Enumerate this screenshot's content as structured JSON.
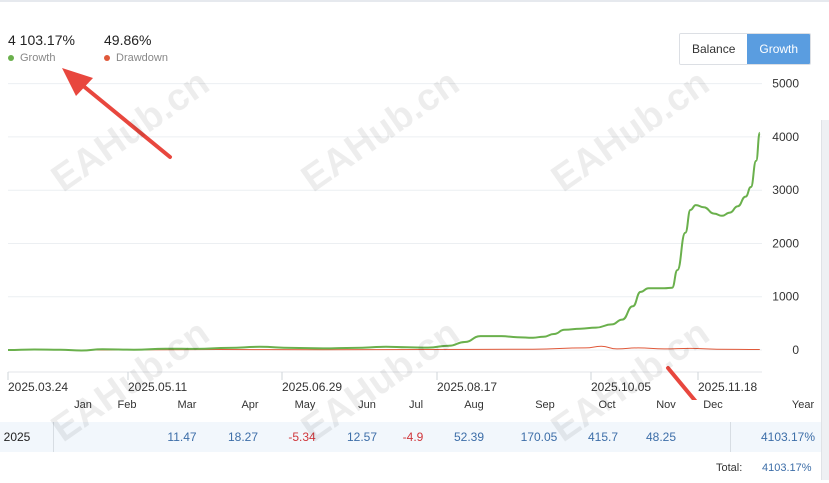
{
  "header": {
    "growth_value": "4 103.17%",
    "growth_label": "Growth",
    "drawdown_value": "49.86%",
    "drawdown_label": "Drawdown"
  },
  "toggle": {
    "balance_label": "Balance",
    "growth_label": "Growth",
    "active": "Growth"
  },
  "colors": {
    "growth": "#6ab04c",
    "drawdown": "#e0593a",
    "accent": "#5a9de0",
    "positive": "#3d6ea8",
    "negative": "#d0373c",
    "arrow": "#e8473e"
  },
  "watermark": "EAHub.cn",
  "chart_data": {
    "type": "line",
    "y_ticks": [
      "5000",
      "4000",
      "3000",
      "2000",
      "1000",
      "0"
    ],
    "x_tick_labels": [
      "2025.03.24",
      "2025.05.11",
      "2025.06.29",
      "2025.08.17",
      "2025.10.05",
      "2025.11.18"
    ],
    "ylim": [
      -400,
      5000
    ],
    "grid": true,
    "series": [
      {
        "name": "Growth",
        "color": "#6ab04c",
        "points": [
          [
            0,
            0
          ],
          [
            0.05,
            10
          ],
          [
            0.1,
            5
          ],
          [
            0.14,
            -10
          ],
          [
            0.18,
            15
          ],
          [
            0.24,
            5
          ],
          [
            0.3,
            25
          ],
          [
            0.36,
            20
          ],
          [
            0.42,
            40
          ],
          [
            0.48,
            60
          ],
          [
            0.54,
            40
          ],
          [
            0.6,
            30
          ],
          [
            0.66,
            40
          ],
          [
            0.72,
            60
          ],
          [
            0.76,
            50
          ],
          [
            0.8,
            45
          ],
          [
            0.84,
            80
          ],
          [
            0.87,
            150
          ],
          [
            0.9,
            260
          ],
          [
            0.94,
            260
          ],
          [
            0.97,
            240
          ],
          [
            1.0,
            230
          ],
          [
            1.02,
            250
          ],
          [
            1.04,
            300
          ],
          [
            1.06,
            380
          ],
          [
            1.09,
            400
          ],
          [
            1.12,
            420
          ],
          [
            1.15,
            480
          ],
          [
            1.17,
            570
          ],
          [
            1.19,
            820
          ],
          [
            1.205,
            1090
          ],
          [
            1.22,
            1160
          ],
          [
            1.25,
            1160
          ],
          [
            1.265,
            1170
          ],
          [
            1.275,
            1500
          ],
          [
            1.29,
            2200
          ],
          [
            1.3,
            2630
          ],
          [
            1.31,
            2720
          ],
          [
            1.325,
            2680
          ],
          [
            1.345,
            2560
          ],
          [
            1.36,
            2520
          ],
          [
            1.375,
            2580
          ],
          [
            1.39,
            2700
          ],
          [
            1.405,
            2880
          ],
          [
            1.415,
            3060
          ],
          [
            1.425,
            3550
          ],
          [
            1.432,
            4080
          ]
        ]
      },
      {
        "name": "Drawdown",
        "color": "#e0593a",
        "points": [
          [
            0,
            0
          ],
          [
            0.2,
            0
          ],
          [
            0.4,
            10
          ],
          [
            0.6,
            5
          ],
          [
            0.8,
            10
          ],
          [
            1.0,
            15
          ],
          [
            1.1,
            40
          ],
          [
            1.13,
            70
          ],
          [
            1.16,
            20
          ],
          [
            1.2,
            40
          ],
          [
            1.25,
            20
          ],
          [
            1.3,
            30
          ],
          [
            1.35,
            15
          ],
          [
            1.432,
            10
          ]
        ]
      }
    ]
  },
  "table": {
    "months": [
      "Jan",
      "Feb",
      "Mar",
      "Apr",
      "May",
      "Jun",
      "Jul",
      "Aug",
      "Sep",
      "Oct",
      "Nov",
      "Dec"
    ],
    "year_header": "Year",
    "rows": [
      {
        "year": "2025",
        "values": [
          "",
          "",
          "11.47",
          "18.27",
          "-5.34",
          "12.57",
          "-4.9",
          "52.39",
          "170.05",
          "415.7",
          "48.25",
          ""
        ],
        "year_total": "4103.17%"
      }
    ],
    "total_label": "Total:",
    "total_value": "4103.17%"
  }
}
